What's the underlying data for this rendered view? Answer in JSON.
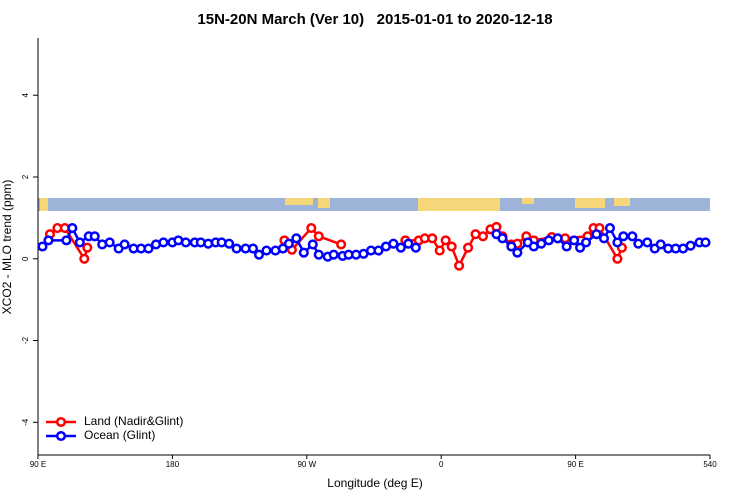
{
  "chart_data": {
    "type": "line",
    "title": "15N-20N March (Ver 10)   2015-01-01 to 2020-12-18",
    "x_label": "Longitude (deg E)",
    "y_label": "XCO2 - MLO trend (ppm)",
    "xlim": [
      90,
      540
    ],
    "ylim": [
      -4.8,
      5.4
    ],
    "xticks": [
      {
        "value": 90,
        "label": "90 E"
      },
      180,
      {
        "value": 270,
        "label": "90 W"
      },
      {
        "value": 360,
        "label": "0"
      },
      {
        "value": 450,
        "label": "90 E"
      },
      540
    ],
    "yticks": [
      -4,
      -2,
      0,
      2,
      4
    ],
    "legend": "bottom-left",
    "series": [
      {
        "name": "Land (Nadir&Glint)",
        "color": "#ff0000",
        "x": [
          98,
          103,
          108,
          121,
          123,
          200,
          255,
          260,
          273,
          278,
          293,
          320,
          336,
          345,
          349,
          354,
          359,
          363,
          367,
          372,
          378,
          383,
          388,
          393,
          397,
          401,
          407,
          411,
          417,
          422,
          434,
          438,
          443,
          458,
          462,
          466,
          478,
          481
        ],
        "values": [
          0.6,
          0.75,
          0.75,
          0,
          0.27,
          null,
          0.45,
          0.22,
          0.75,
          0.55,
          0.35,
          null,
          0.45,
          0.45,
          0.5,
          0.5,
          0.2,
          0.45,
          0.3,
          -0.17,
          0.27,
          0.6,
          0.55,
          0.72,
          0.78,
          0.55,
          0.35,
          0.37,
          0.55,
          0.45,
          0.53,
          0.5,
          0.5,
          0.55,
          0.75,
          0.75,
          0,
          0.27
        ]
      },
      {
        "name": "Ocean (Glint)",
        "color": "#0000ff",
        "x": [
          93,
          97,
          109,
          113,
          118,
          124,
          128,
          133,
          138,
          144,
          148,
          154,
          159,
          164,
          169,
          174,
          180,
          184,
          189,
          195,
          199,
          204,
          209,
          213,
          218,
          223,
          229,
          234,
          238,
          243,
          249,
          254,
          258,
          263,
          268,
          274,
          278,
          284,
          288,
          294,
          298,
          303,
          308,
          313,
          318,
          323,
          328,
          333,
          338,
          343,
          370,
          397,
          401,
          407,
          411,
          418,
          422,
          427,
          432,
          438,
          444,
          449,
          453,
          457,
          464,
          469,
          473,
          478,
          482,
          488,
          492,
          498,
          503,
          507,
          512,
          517,
          522,
          527,
          533,
          537
        ],
        "values": [
          0.3,
          0.45,
          0.45,
          0.75,
          0.4,
          0.55,
          0.55,
          0.35,
          0.4,
          0.25,
          0.35,
          0.25,
          0.25,
          0.25,
          0.35,
          0.4,
          0.4,
          0.45,
          0.4,
          0.4,
          0.4,
          0.37,
          0.4,
          0.4,
          0.37,
          0.25,
          0.25,
          0.25,
          0.1,
          0.2,
          0.2,
          0.25,
          0.37,
          0.5,
          0.15,
          0.35,
          0.1,
          0.05,
          0.1,
          0.07,
          0.1,
          0.1,
          0.12,
          0.2,
          0.2,
          0.3,
          0.37,
          0.27,
          0.37,
          0.27,
          null,
          0.6,
          0.5,
          0.3,
          0.15,
          0.4,
          0.3,
          0.37,
          0.45,
          0.5,
          0.3,
          0.45,
          0.27,
          0.4,
          0.6,
          0.5,
          0.75,
          0.4,
          0.55,
          0.55,
          0.37,
          0.4,
          0.25,
          0.35,
          0.25,
          0.25,
          0.25,
          0.32,
          0.4,
          0.4
        ]
      }
    ]
  }
}
